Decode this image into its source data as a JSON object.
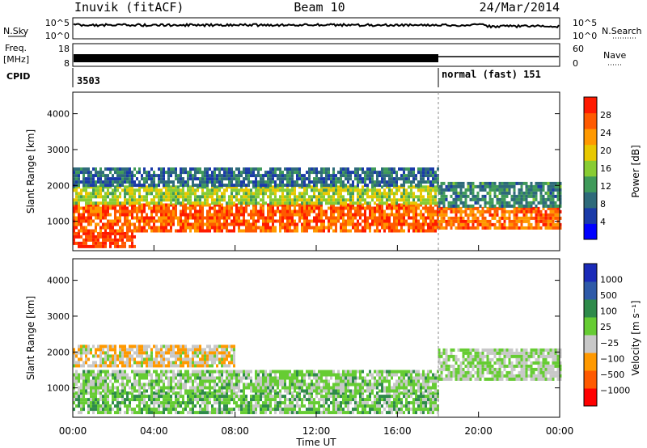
{
  "header": {
    "station": "Inuvik (fitACF)",
    "beam": "Beam 10",
    "date": "24/Mar/2014"
  },
  "noise_panel": {
    "left_label": "N.Sky",
    "right_label": "N.Search",
    "left_ticks": [
      "10^5",
      "10^0"
    ],
    "right_ticks": [
      "10^5",
      "10^0"
    ]
  },
  "freq_panel": {
    "left_label_line1": "Freq.",
    "left_label_line2": "[MHz]",
    "left_ticks": [
      "18",
      "8"
    ],
    "right_label": "Nave",
    "right_ticks": [
      "60",
      "0"
    ]
  },
  "cpid_panel": {
    "label": "CPID",
    "segments": [
      {
        "text": "3503",
        "start_hour": 0
      },
      {
        "text": "normal (fast) 151",
        "start_hour": 18
      }
    ]
  },
  "time_axis": {
    "title": "Time UT",
    "ticks": [
      "00:00",
      "04:00",
      "08:00",
      "12:00",
      "16:00",
      "20:00",
      "00:00"
    ],
    "range_hours": [
      0,
      24
    ]
  },
  "chart_data": [
    {
      "type": "heatmap",
      "title": "",
      "ylabel": "Slant Range [km]",
      "yticks": [
        "1000",
        "2000",
        "3000",
        "4000"
      ],
      "ylim": [
        180,
        4600
      ],
      "xlim_hours": [
        0,
        24
      ],
      "colorbar": {
        "label": "Power [dB]",
        "tick_labels": [
          "4",
          "8",
          "12",
          "16",
          "20",
          "24",
          "28"
        ],
        "range": [
          0,
          30
        ],
        "colors": [
          "#0000ff",
          "#1a3aa8",
          "#2e6a7a",
          "#3f9a5a",
          "#88cc33",
          "#e8c800",
          "#ff9900",
          "#ff5a00",
          "#ff1a00"
        ]
      },
      "bands": [
        {
          "range_km": [
            300,
            700
          ],
          "hours": [
            0,
            3
          ],
          "value": 27
        },
        {
          "range_km": [
            700,
            1500
          ],
          "hours": [
            0,
            18
          ],
          "value": 25
        },
        {
          "range_km": [
            1500,
            2000
          ],
          "hours": [
            0,
            18
          ],
          "value": 16
        },
        {
          "range_km": [
            2000,
            2500
          ],
          "hours": [
            0,
            18
          ],
          "value": 8
        },
        {
          "range_km": [
            800,
            1400
          ],
          "hours": [
            18,
            24
          ],
          "value": 24
        },
        {
          "range_km": [
            1400,
            2100
          ],
          "hours": [
            18,
            24
          ],
          "value": 10
        }
      ]
    },
    {
      "type": "heatmap",
      "title": "",
      "ylabel": "Slant Range [km]",
      "yticks": [
        "1000",
        "2000",
        "3000",
        "4000"
      ],
      "ylim": [
        180,
        4600
      ],
      "xlim_hours": [
        0,
        24
      ],
      "colorbar": {
        "label": "Velocity [m s⁻¹]",
        "tick_labels": [
          "1000",
          "500",
          "100",
          "25",
          "−25",
          "−100",
          "−500",
          "−1000"
        ],
        "range": [
          -1000,
          1000
        ],
        "colors": [
          "#ff0000",
          "#ff5a00",
          "#ff9900",
          "#c8c8c8",
          "#66cc33",
          "#2e8a4a",
          "#2e5aa8",
          "#1a2ab8"
        ]
      },
      "bands": [
        {
          "range_km": [
            300,
            900
          ],
          "hours": [
            0,
            18
          ],
          "value": 150
        },
        {
          "range_km": [
            900,
            1500
          ],
          "hours": [
            0,
            18
          ],
          "value": 60
        },
        {
          "range_km": [
            1600,
            2200
          ],
          "hours": [
            0,
            8
          ],
          "value": -200
        },
        {
          "range_km": [
            1200,
            2100
          ],
          "hours": [
            18,
            24
          ],
          "value": 0
        }
      ]
    }
  ]
}
